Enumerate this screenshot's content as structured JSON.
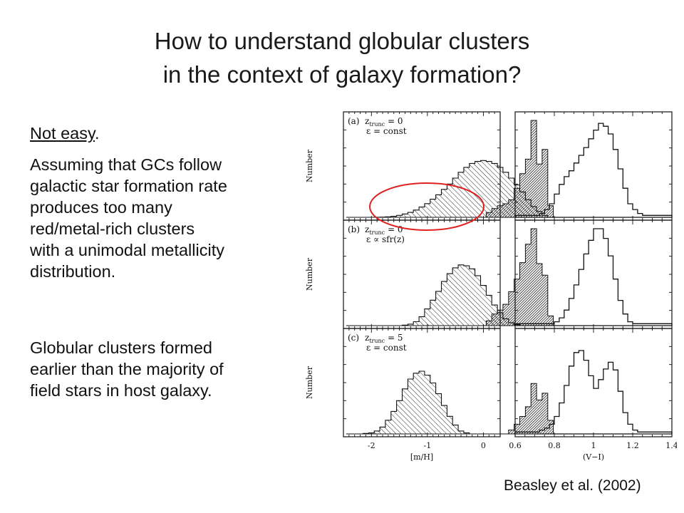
{
  "slide": {
    "title_lines": [
      "How to understand globular clusters",
      "in the context of galaxy formation?"
    ],
    "intro": "Not easy",
    "intro_punct": ".",
    "para1_lines": [
      "Assuming  that GCs follow",
      "galactic star formation rate",
      "produces too many",
      "red/metal-rich clusters",
      "with a unimodal metallicity",
      "distribution."
    ],
    "para2_lines": [
      "Globular clusters formed",
      "earlier than the majority of",
      "field stars in host galaxy."
    ],
    "credit": "Beasley et al. (2002)"
  },
  "colors": {
    "highlight_ellipse": "#e02020",
    "ink": "#111111"
  },
  "chart_data": {
    "type": "histogram",
    "panels": [
      {
        "label": "(a)",
        "z_trunc": "0",
        "epsilon": "const"
      },
      {
        "label": "(b)",
        "z_trunc": "0",
        "epsilon": "sfr(z)"
      },
      {
        "label": "(c)",
        "z_trunc": "5",
        "epsilon": "const"
      }
    ],
    "left_column": {
      "xlabel": "[m/H]",
      "ylabel": "Number",
      "xlim": [
        -2.5,
        0.3
      ],
      "xticks": [
        "-2",
        "-1",
        "0"
      ],
      "bin_width": 0.1,
      "x_start": -2.45,
      "series": [
        {
          "name": "field stars (light hatch)",
          "a": [
            0,
            0,
            0,
            0,
            0,
            0.1,
            0.2,
            0.5,
            1,
            2,
            3.4,
            5,
            7.4,
            10.5,
            14,
            18.5,
            23,
            28.5,
            34,
            40,
            46,
            51,
            55,
            57,
            58,
            57,
            55,
            51,
            46,
            40,
            33,
            26,
            18,
            11,
            6,
            2,
            0,
            0
          ],
          "b": [
            0,
            0,
            0,
            0,
            0,
            0,
            0,
            0,
            0,
            0,
            0.5,
            1.5,
            4,
            9,
            17,
            26,
            35,
            45,
            53,
            59,
            62,
            61,
            58,
            51,
            41,
            31,
            21,
            13,
            7,
            3,
            1,
            0,
            0,
            0,
            0,
            0,
            0,
            0
          ],
          "c": [
            0,
            0,
            0,
            0.5,
            1,
            3,
            7,
            14,
            23,
            34,
            46,
            56,
            62,
            64,
            60,
            52,
            41,
            29,
            18,
            9,
            3,
            1,
            0,
            0,
            0,
            0,
            0,
            0,
            0,
            0,
            0,
            0,
            0,
            0,
            0,
            0,
            0,
            0
          ]
        },
        {
          "name": "globular clusters (dark hatch)",
          "a": [
            0,
            0,
            0,
            0,
            0,
            0,
            0,
            0,
            0,
            0,
            0,
            0,
            0,
            0,
            0,
            0,
            0,
            0,
            0,
            0,
            0,
            0,
            0,
            0,
            0,
            5,
            9,
            12,
            14,
            18,
            30,
            45,
            60,
            100,
            55,
            70,
            12,
            0
          ],
          "b": [
            0,
            0,
            0,
            0,
            0,
            0,
            0,
            0,
            0,
            0,
            0,
            0,
            0,
            0,
            0,
            0,
            0,
            0,
            0,
            0,
            0,
            0,
            0,
            0,
            0,
            5,
            12,
            16,
            22,
            35,
            48,
            65,
            84,
            100,
            64,
            52,
            10,
            0
          ],
          "c": [
            0,
            0,
            0,
            0,
            0,
            0,
            0,
            0,
            0,
            0,
            0,
            0,
            0,
            0,
            0,
            0,
            0,
            0,
            0,
            0,
            0,
            0,
            0,
            0,
            0,
            0,
            0,
            0,
            0,
            4,
            10,
            18,
            28,
            52,
            35,
            42,
            14,
            0
          ]
        }
      ]
    },
    "right_column": {
      "xlabel": "(V−I)",
      "xlim": [
        0.6,
        1.4
      ],
      "xticks": [
        "0.6",
        "0.8",
        "1",
        "1.2",
        "1.4"
      ],
      "bin_width": 0.025,
      "x_start": 0.6,
      "series": [
        {
          "name": "(V−I) distribution",
          "a": [
            2,
            2,
            2,
            2,
            2,
            4,
            8,
            14,
            24,
            34,
            42,
            48,
            56,
            64,
            72,
            81,
            90,
            97,
            94,
            86,
            70,
            50,
            30,
            14,
            8,
            4,
            2,
            2,
            2,
            2,
            2,
            2
          ],
          "b": [
            2,
            2,
            2,
            2,
            2,
            2,
            2,
            2,
            4,
            8,
            16,
            28,
            42,
            58,
            74,
            88,
            100,
            100,
            90,
            72,
            48,
            26,
            12,
            4,
            2,
            2,
            2,
            2,
            2,
            2,
            2,
            2
          ],
          "c": [
            2,
            2,
            2,
            2,
            2,
            4,
            6,
            10,
            18,
            32,
            50,
            70,
            84,
            86,
            76,
            60,
            47,
            56,
            67,
            74,
            66,
            44,
            22,
            10,
            4,
            2,
            2,
            2,
            2,
            2,
            2,
            2
          ]
        }
      ]
    }
  }
}
